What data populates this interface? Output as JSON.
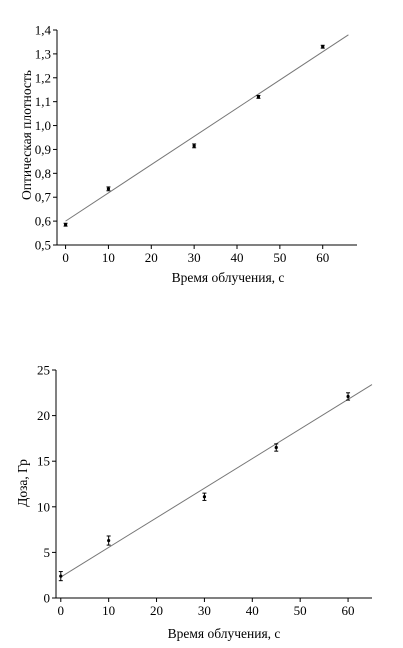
{
  "chart_data": [
    {
      "type": "scatter",
      "xlabel": "Время облучения, с",
      "ylabel": "Оптическая плотность",
      "xlim": [
        -2,
        68
      ],
      "ylim": [
        0.5,
        1.4
      ],
      "xticks": [
        0,
        10,
        20,
        30,
        40,
        50,
        60
      ],
      "yticks": [
        0.5,
        0.6,
        0.7,
        0.8,
        0.9,
        1.0,
        1.1,
        1.2,
        1.3,
        1.4
      ],
      "tick_labels_x": [
        "0",
        "10",
        "20",
        "30",
        "40",
        "50",
        "60"
      ],
      "tick_labels_y": [
        "0,5",
        "0,6",
        "0,7",
        "0,8",
        "0,9",
        "1,0",
        "1,1",
        "1,2",
        "1,3",
        "1,4"
      ],
      "points": [
        {
          "x": 0,
          "y": 0.585,
          "err": 0.006
        },
        {
          "x": 10,
          "y": 0.735,
          "err": 0.008
        },
        {
          "x": 30,
          "y": 0.915,
          "err": 0.008
        },
        {
          "x": 45,
          "y": 1.12,
          "err": 0.006
        },
        {
          "x": 60,
          "y": 1.33,
          "err": 0.006
        }
      ],
      "fit_line": {
        "x": [
          0,
          66
        ],
        "y": [
          0.6,
          1.38
        ]
      },
      "grid": false
    },
    {
      "type": "scatter",
      "xlabel": "Время облучения, с",
      "ylabel": "Доза, Гр",
      "xlim": [
        -1,
        65
      ],
      "ylim": [
        0,
        25
      ],
      "xticks": [
        0,
        10,
        20,
        30,
        40,
        50,
        60
      ],
      "yticks": [
        0,
        5,
        10,
        15,
        20,
        25
      ],
      "tick_labels_x": [
        "0",
        "10",
        "20",
        "30",
        "40",
        "50",
        "60"
      ],
      "tick_labels_y": [
        "0",
        "5",
        "10",
        "15",
        "20",
        "25"
      ],
      "points": [
        {
          "x": 0,
          "y": 2.4,
          "err": 0.5
        },
        {
          "x": 10,
          "y": 6.3,
          "err": 0.5
        },
        {
          "x": 30,
          "y": 11.1,
          "err": 0.4
        },
        {
          "x": 45,
          "y": 16.5,
          "err": 0.4
        },
        {
          "x": 60,
          "y": 22.1,
          "err": 0.4
        }
      ],
      "fit_line": {
        "x": [
          0,
          65
        ],
        "y": [
          2.3,
          23.4
        ]
      },
      "grid": false
    }
  ]
}
